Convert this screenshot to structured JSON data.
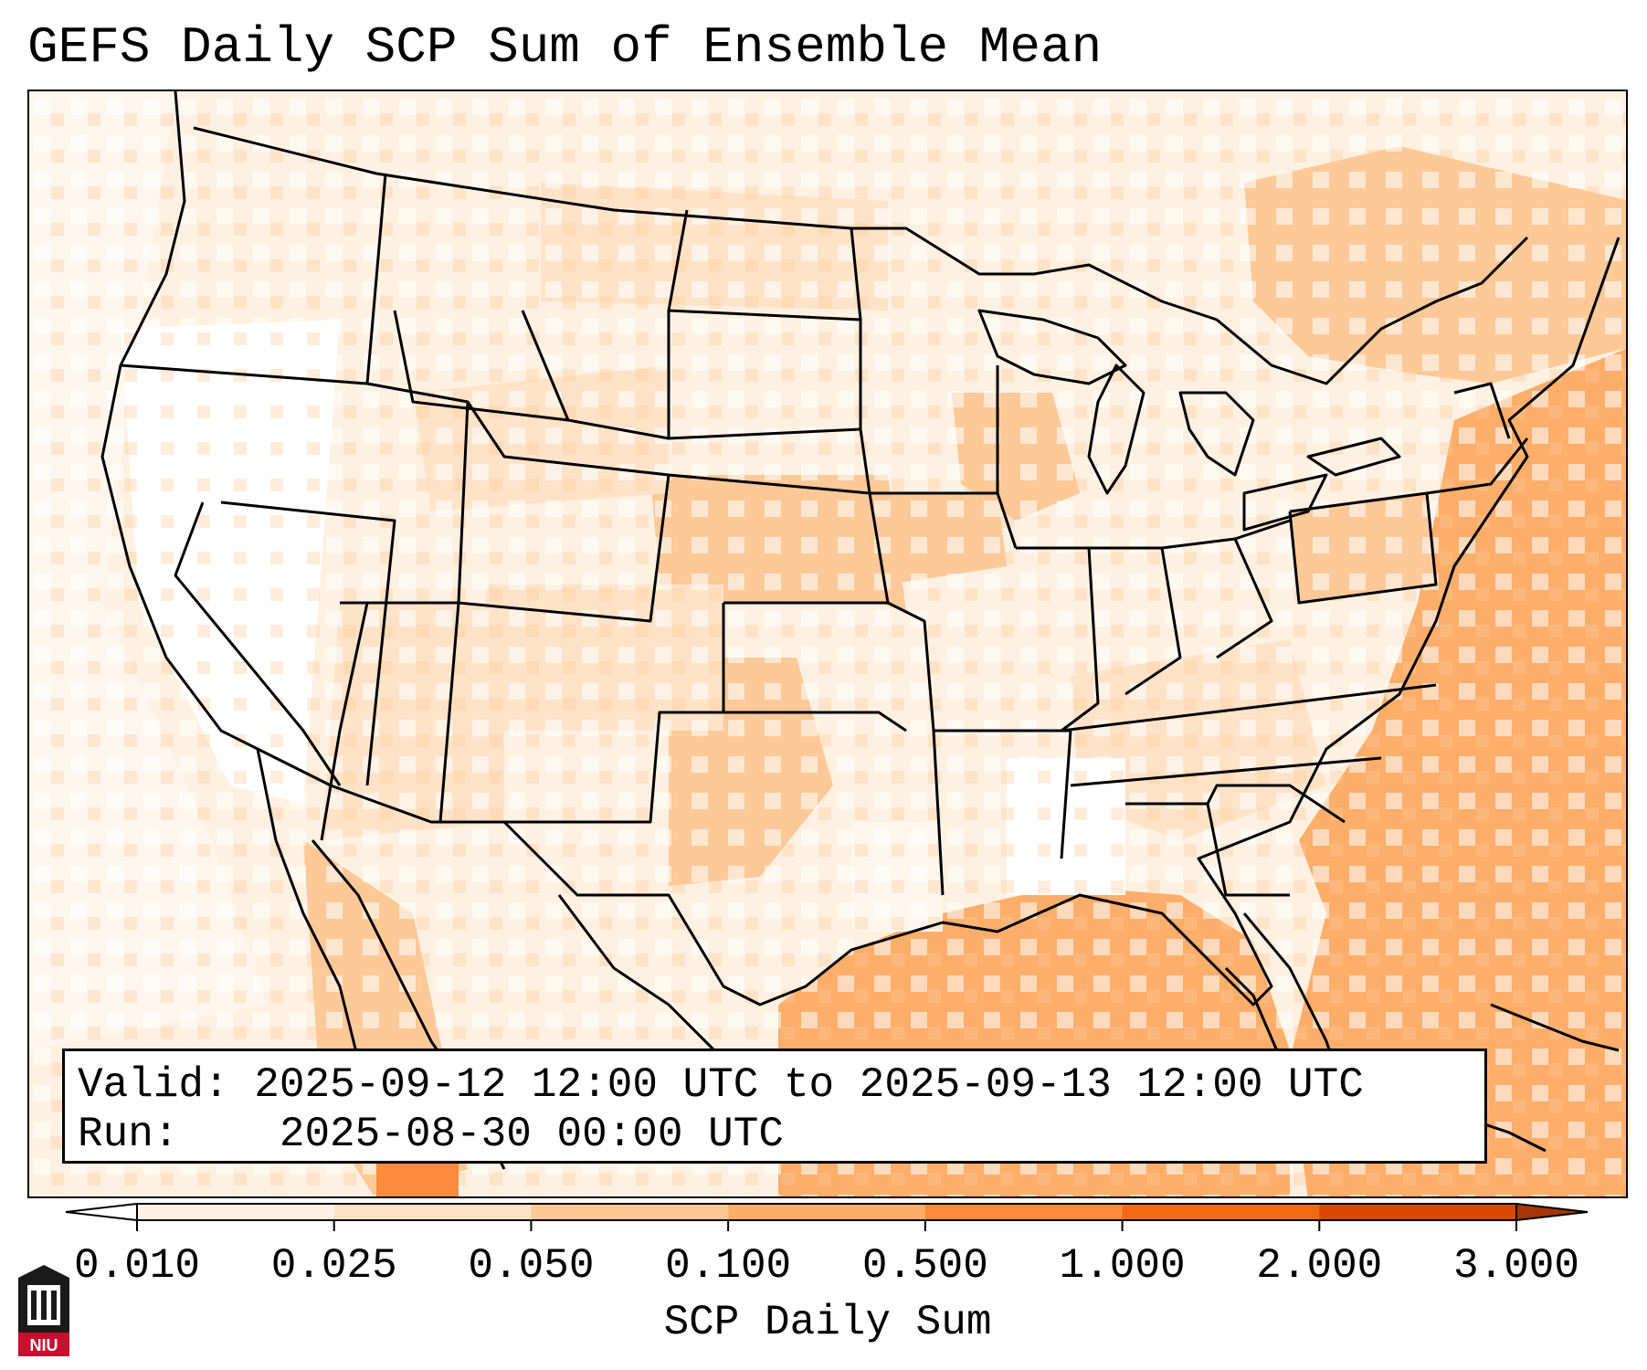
{
  "title": "GEFS Daily SCP Sum of Ensemble Mean",
  "info": {
    "valid_label": "Valid:",
    "valid_value": "2025-09-12 12:00 UTC to 2025-09-13 12:00 UTC",
    "run_label": "Run:",
    "run_value": "2025-08-30 00:00 UTC"
  },
  "colorbar": {
    "label": "SCP Daily Sum",
    "ticks": [
      "0.010",
      "0.025",
      "0.050",
      "0.100",
      "0.500",
      "1.000",
      "2.000",
      "3.000"
    ],
    "colors": [
      "#fff3e6",
      "#ffe3c8",
      "#fdc998",
      "#fdae6b",
      "#fd8d3c",
      "#f16913",
      "#d94801"
    ],
    "under_color": "#ffffff",
    "over_color": "#a63603"
  },
  "logo": {
    "text": "NIU",
    "icon": "niu-logo-icon",
    "color": "#c8102e"
  },
  "icons": [
    "map-icon",
    "colorbar-icon",
    "niu-logo-icon"
  ]
}
